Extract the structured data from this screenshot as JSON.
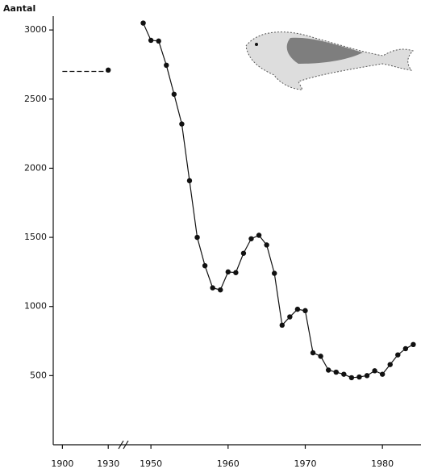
{
  "chart_data": {
    "type": "line",
    "y_label": "Aantal",
    "ylim": [
      0,
      3100
    ],
    "yticks": [
      500,
      1000,
      1500,
      2000,
      2500,
      3000
    ],
    "xlim": [
      1894,
      1985
    ],
    "x_break": [
      1932,
      1948
    ],
    "xticks": [
      1900,
      1930,
      1950,
      1960,
      1970,
      1980
    ],
    "series": [
      {
        "color": "#111111",
        "dashed": true,
        "markers": false,
        "x": [
          1900,
          1930
        ],
        "values": [
          2700,
          2700
        ]
      },
      {
        "color": "#111111",
        "dashed": false,
        "markers": true,
        "x": [
          1930,
          1940,
          1949,
          1950,
          1951,
          1952,
          1953,
          1954,
          1955,
          1956,
          1957,
          1958,
          1959,
          1960,
          1961,
          1962,
          1963,
          1964,
          1965,
          1966,
          1967,
          1968,
          1969,
          1970,
          1971,
          1972,
          1973,
          1974,
          1975,
          1976,
          1977,
          1978,
          1979,
          1980,
          1981,
          1982,
          1983,
          1984
        ],
        "values": [
          2710,
          null,
          3050,
          2925,
          2920,
          2745,
          2535,
          2320,
          1910,
          1500,
          1295,
          1135,
          1120,
          1250,
          1245,
          1385,
          1490,
          1515,
          1445,
          1240,
          865,
          925,
          980,
          970,
          665,
          640,
          540,
          525,
          510,
          485,
          490,
          500,
          535,
          510,
          580,
          650,
          695,
          725
        ]
      }
    ]
  }
}
